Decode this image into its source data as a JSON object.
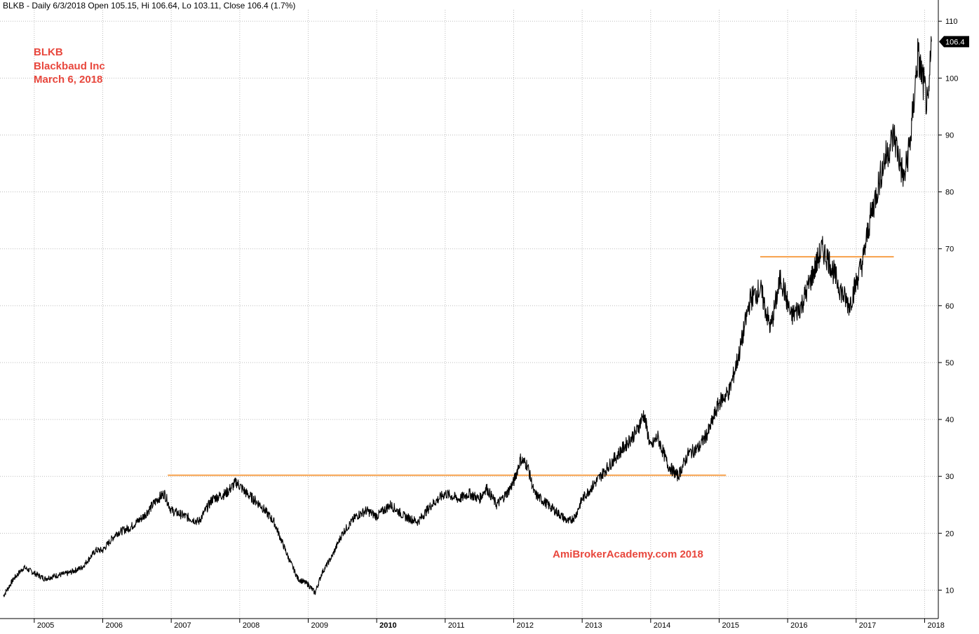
{
  "header": {
    "title": "BLKB - Daily 6/3/2018 Open 105.15, Hi 106.64, Lo 103.11, Close 106.4 (1.7%)"
  },
  "annotations": {
    "ticker": "BLKB",
    "company": "Blackbaud Inc",
    "date": "March 6, 2018",
    "watermark": "AmiBrokerAcademy.com  2018"
  },
  "price_tag": "106.4",
  "colors": {
    "price_line": "#000000",
    "level_line": "#f7a04a",
    "annotation": "#e8473d",
    "grid": "#bdbdbd",
    "tag_bg": "#000000",
    "tag_text": "#ffffff"
  },
  "chart_data": {
    "type": "line",
    "title": "BLKB - Daily 6/3/2018 Open 105.15, Hi 106.64, Lo 103.11, Close 106.4 (1.7%)",
    "xlabel": "",
    "ylabel": "",
    "ylim": [
      5,
      112
    ],
    "xlim": [
      2004.5,
      2018.2
    ],
    "x_ticks": [
      "2005",
      "2006",
      "2007",
      "2008",
      "2009",
      "2010",
      "2011",
      "2012",
      "2013",
      "2014",
      "2015",
      "2016",
      "2017",
      "2018"
    ],
    "y_ticks": [
      10,
      20,
      30,
      40,
      50,
      60,
      70,
      80,
      90,
      100,
      110
    ],
    "grid": true,
    "series": [
      {
        "x": [
          2004.55,
          2004.7,
          2004.85,
          2005.0,
          2005.15,
          2005.3,
          2005.5,
          2005.7,
          2005.9,
          2006.0,
          2006.2,
          2006.4,
          2006.6,
          2006.8,
          2006.9,
          2007.0,
          2007.2,
          2007.4,
          2007.6,
          2007.8,
          2007.95,
          2008.1,
          2008.3,
          2008.5,
          2008.7,
          2008.85,
          2009.0,
          2009.1,
          2009.2,
          2009.35,
          2009.5,
          2009.7,
          2009.85,
          2010.0,
          2010.2,
          2010.4,
          2010.6,
          2010.8,
          2011.0,
          2011.2,
          2011.35,
          2011.5,
          2011.6,
          2011.75,
          2011.9,
          2012.0,
          2012.1,
          2012.2,
          2012.3,
          2012.4,
          2012.5,
          2012.6,
          2012.8,
          2012.9,
          2013.0,
          2013.2,
          2013.4,
          2013.6,
          2013.8,
          2013.9,
          2014.0,
          2014.1,
          2014.25,
          2014.4,
          2014.55,
          2014.7,
          2014.85,
          2015.0,
          2015.15,
          2015.3,
          2015.45,
          2015.6,
          2015.75,
          2015.9,
          2016.05,
          2016.2,
          2016.35,
          2016.5,
          2016.6,
          2016.7,
          2016.8,
          2016.9,
          2017.0,
          2017.1,
          2017.2,
          2017.3,
          2017.4,
          2017.55,
          2017.7,
          2017.8,
          2017.9,
          2018.0,
          2018.05,
          2018.1
        ],
        "y": [
          9,
          12,
          14,
          13,
          12,
          12.5,
          13,
          14,
          17,
          17,
          20,
          21,
          23,
          26,
          27,
          24,
          23,
          22,
          26,
          27,
          29,
          27,
          25,
          22,
          16,
          12,
          11,
          9.5,
          13,
          16,
          20,
          23,
          24,
          23,
          25,
          23,
          22,
          25,
          27,
          26,
          27,
          26,
          28,
          25,
          27,
          29,
          33,
          32,
          27,
          26,
          25,
          24,
          22,
          23,
          26,
          29,
          32,
          35,
          38,
          41,
          35,
          37,
          32,
          30,
          34,
          35,
          38,
          43,
          45,
          52,
          61,
          63,
          56,
          65,
          58,
          60,
          65,
          70,
          68,
          65,
          62,
          60,
          64,
          68,
          75,
          80,
          85,
          90,
          82,
          90,
          104,
          98,
          94,
          106.4
        ]
      }
    ],
    "horizontal_lines": [
      {
        "y": 30.2,
        "x_start": 2006.95,
        "x_end": 2015.1
      },
      {
        "y": 68.6,
        "x_start": 2015.6,
        "x_end": 2017.55
      }
    ]
  }
}
